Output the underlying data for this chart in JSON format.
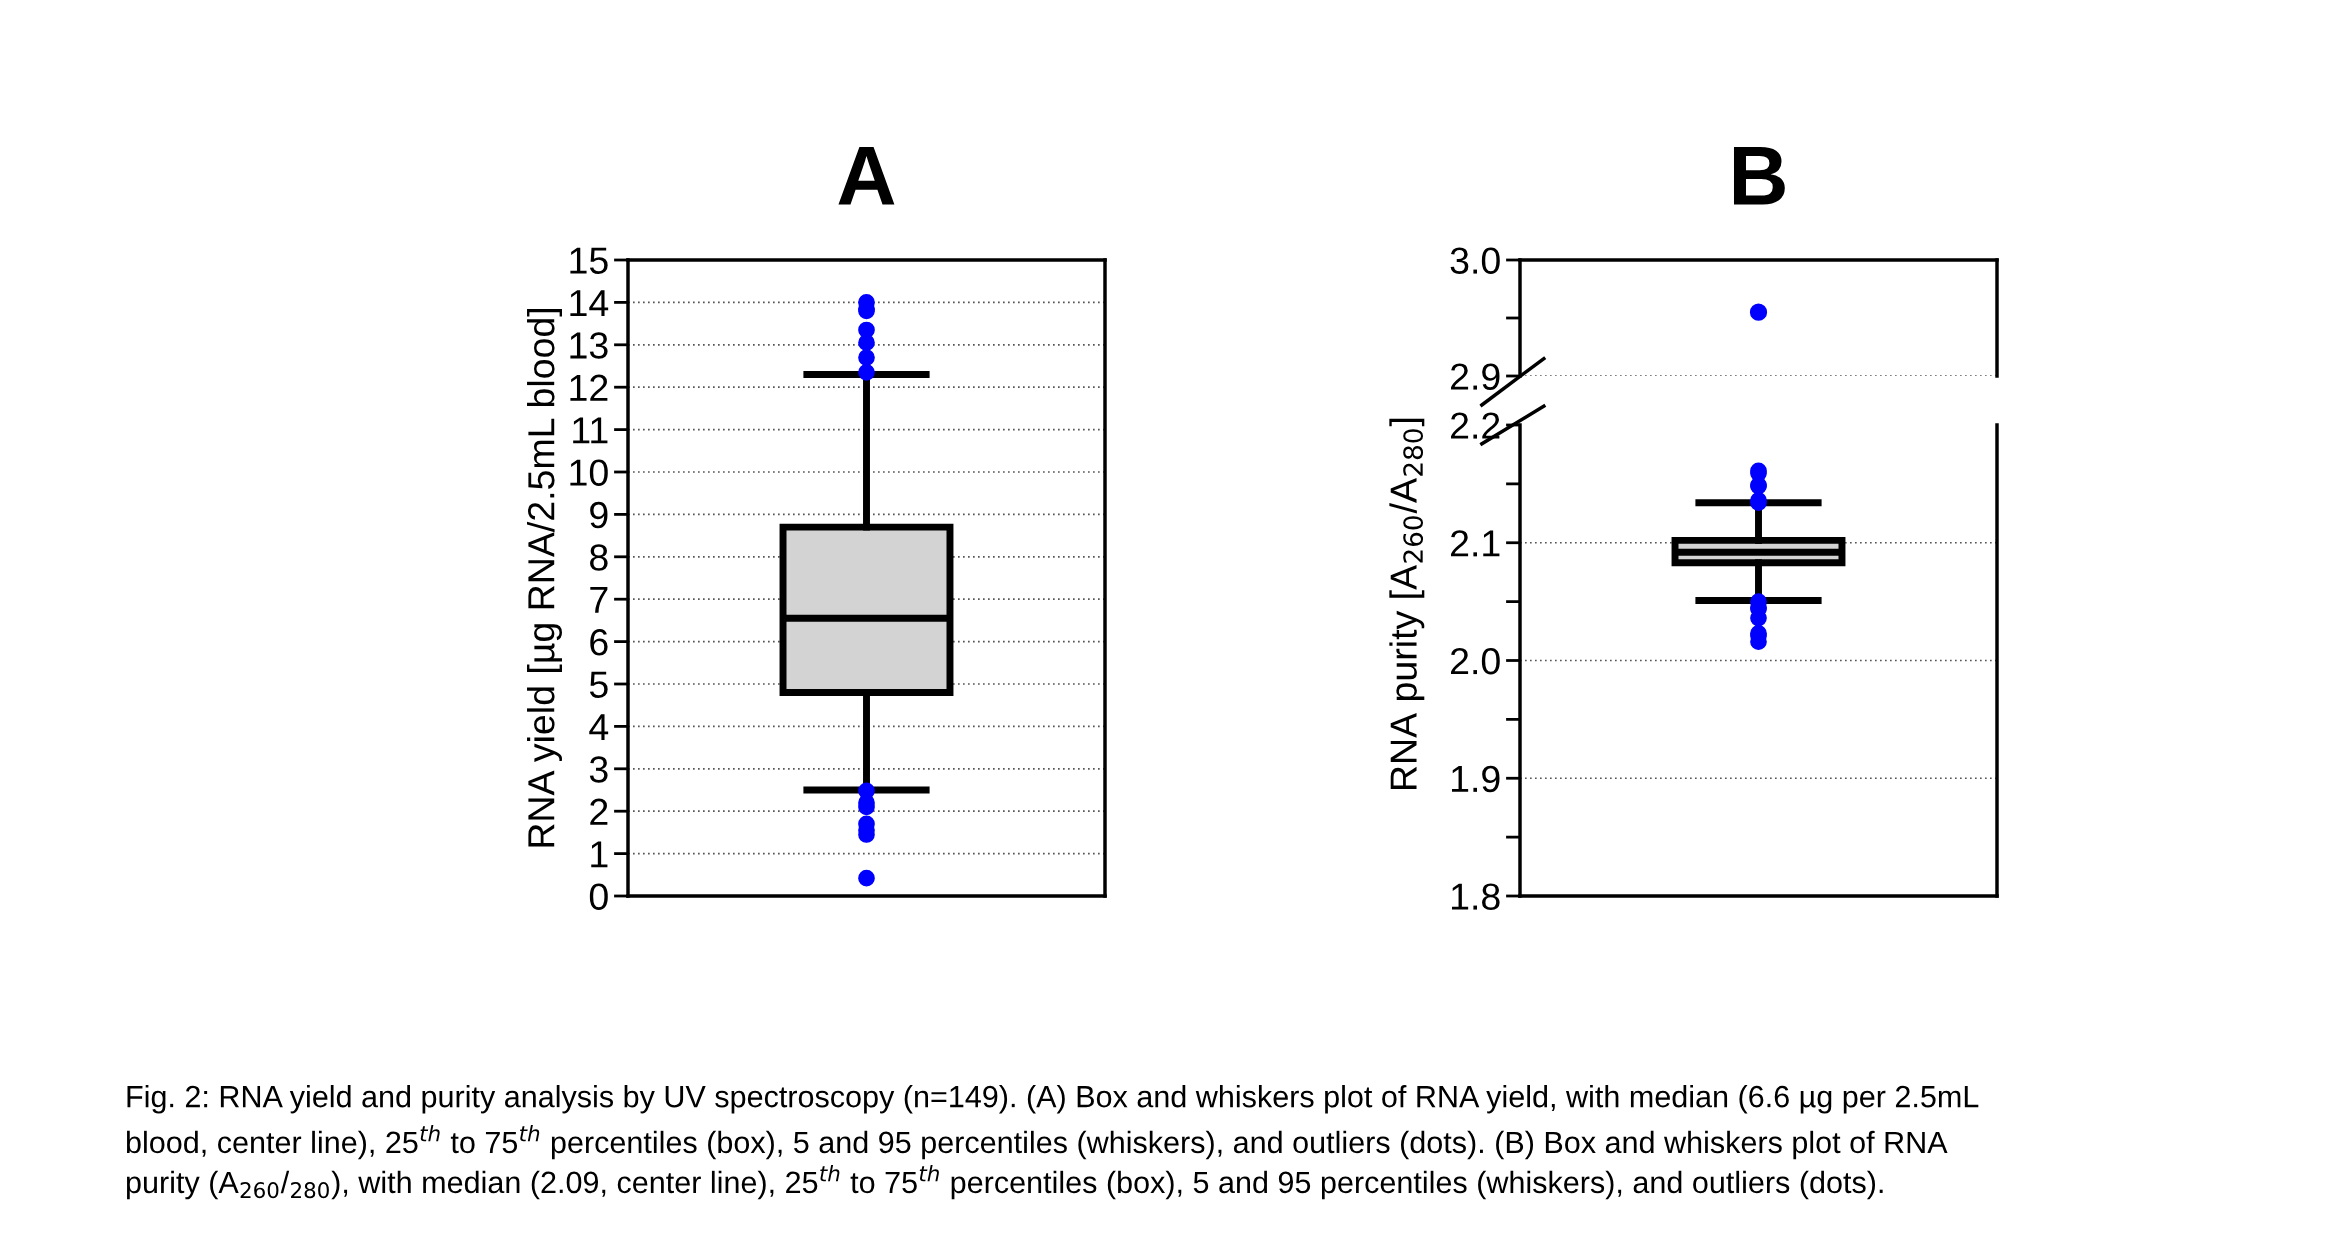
{
  "chart_data": [
    {
      "type": "box",
      "title": "A",
      "ylabel": "RNA yield [µg RNA/2.5mL blood]",
      "categories": [
        null
      ],
      "ylim": [
        0,
        15
      ],
      "yticks": [
        0,
        1,
        2,
        3,
        4,
        5,
        6,
        7,
        8,
        9,
        10,
        11,
        12,
        13,
        14,
        15
      ],
      "grid": "y",
      "tick_labels": "y",
      "colors": [
        "#d3d3d3"
      ],
      "color": "#0000ff",
      "boxes": [
        {
          "low": 2.5,
          "q1": 4.8,
          "median": 6.55,
          "q3": 8.7,
          "high": 12.3,
          "outliers": [
            13.85,
            14.0,
            13.8,
            13.35,
            13.05,
            12.7,
            12.35,
            2.48,
            2.2,
            2.1,
            1.7,
            1.45,
            1.55,
            0.42
          ]
        }
      ],
      "annotations": [
        "Fig. 2: RNA yield and purity analysis by UV spectroscopy (n=149). (A) Box and whiskers plot of RNA yield, with median (6.6 µg per 2.5mL",
        "blood, center line), 25$^{th}$ to 75$^{th}$ percentiles (box), 5 and 95 percentiles (whiskers), and outliers (dots). (B) Box and whiskers plot of RNA",
        "purity (A$_{260}$/$_{280}$), with median (2.09, center line), 25$^{th}$ to 75$^{th}$ percentiles (box), 5 and 95 percentiles (whiskers), and outliers (dots)."
      ]
    },
    {
      "type": "scatter",
      "title": "B",
      "categories": [
        null
      ],
      "values": [
        2.955
      ],
      "color": "#0000ff",
      "marker": "circle",
      "ylim": [
        2.9,
        3.0
      ],
      "yticks": [
        2.9,
        {
          "value": 2.95,
          "label": null
        },
        {
          "value": 3,
          "label": "3.0"
        }
      ],
      "grid": "y",
      "tick_labels": "y"
    },
    {
      "type": "box",
      "ylabel": "RNA purity [A$_{260}$/A$_{280}$]",
      "categories": [
        null
      ],
      "ylim": [
        1.8,
        2.2
      ],
      "yticks": [
        1.8,
        {
          "value": 1.85,
          "label": null
        },
        1.9,
        {
          "value": 1.95,
          "label": null
        },
        {
          "value": 2,
          "label": "2.0"
        },
        {
          "value": 2.05,
          "label": null
        },
        2.1,
        {
          "value": 2.15,
          "label": null
        },
        2.2
      ],
      "grid": "y",
      "tick_labels": "y",
      "colors": [
        "#d3d3d3"
      ],
      "color": "#0000ff",
      "boxes": [
        {
          "low": 2.051,
          "q1": 2.083,
          "median": 2.092,
          "q3": 2.102,
          "high": 2.134,
          "outliers": [
            2.161,
            2.149,
            2.136,
            2.159,
            2.148,
            2.134,
            2.05,
            2.044,
            2.045,
            2.036,
            2.023,
            2.021,
            2.016
          ]
        }
      ]
    }
  ]
}
